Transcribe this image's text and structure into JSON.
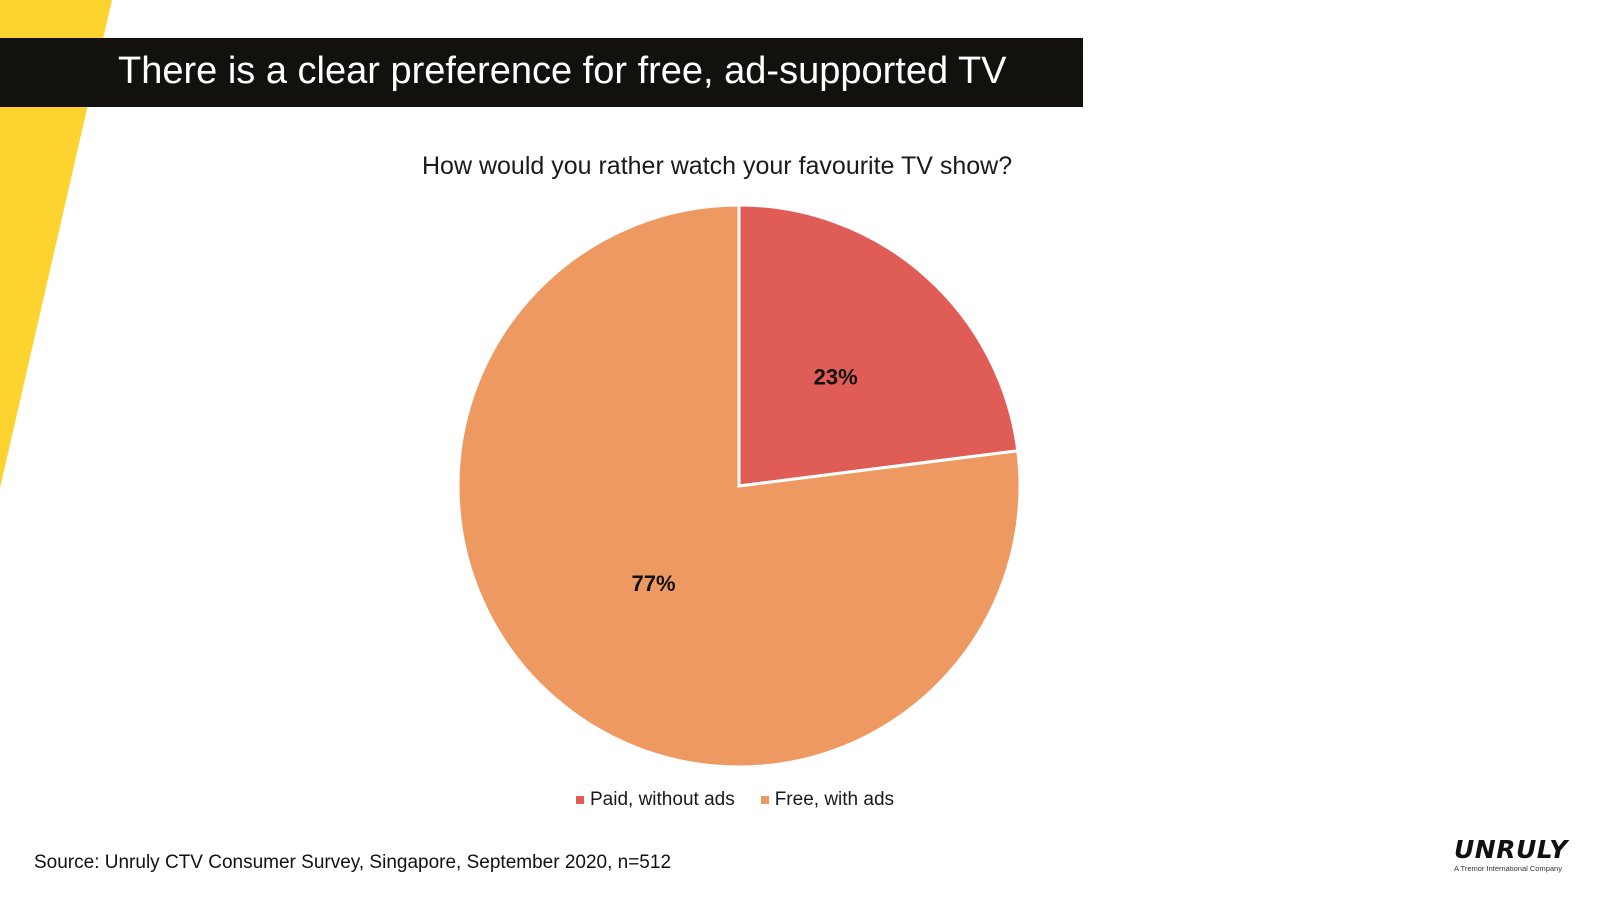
{
  "slide": {
    "title": "There is a clear preference for free, ad-supported TV",
    "source": "Source: Unruly CTV Consumer Survey, Singapore, September 2020, n=512",
    "accent_color": "#fdd42f",
    "title_bar_color": "#13110d"
  },
  "brand": {
    "name": "UNRULY",
    "tagline": "A Tremor International Company"
  },
  "chart_data": {
    "type": "pie",
    "title": "How would you rather watch your favourite TV show?",
    "legend_position": "bottom",
    "slices": [
      {
        "name": "Paid, without ads",
        "value": 23,
        "label": "23%",
        "color": "#e05d57"
      },
      {
        "name": "Free, with ads",
        "value": 77,
        "label": "77%",
        "color": "#ee9962"
      }
    ]
  }
}
